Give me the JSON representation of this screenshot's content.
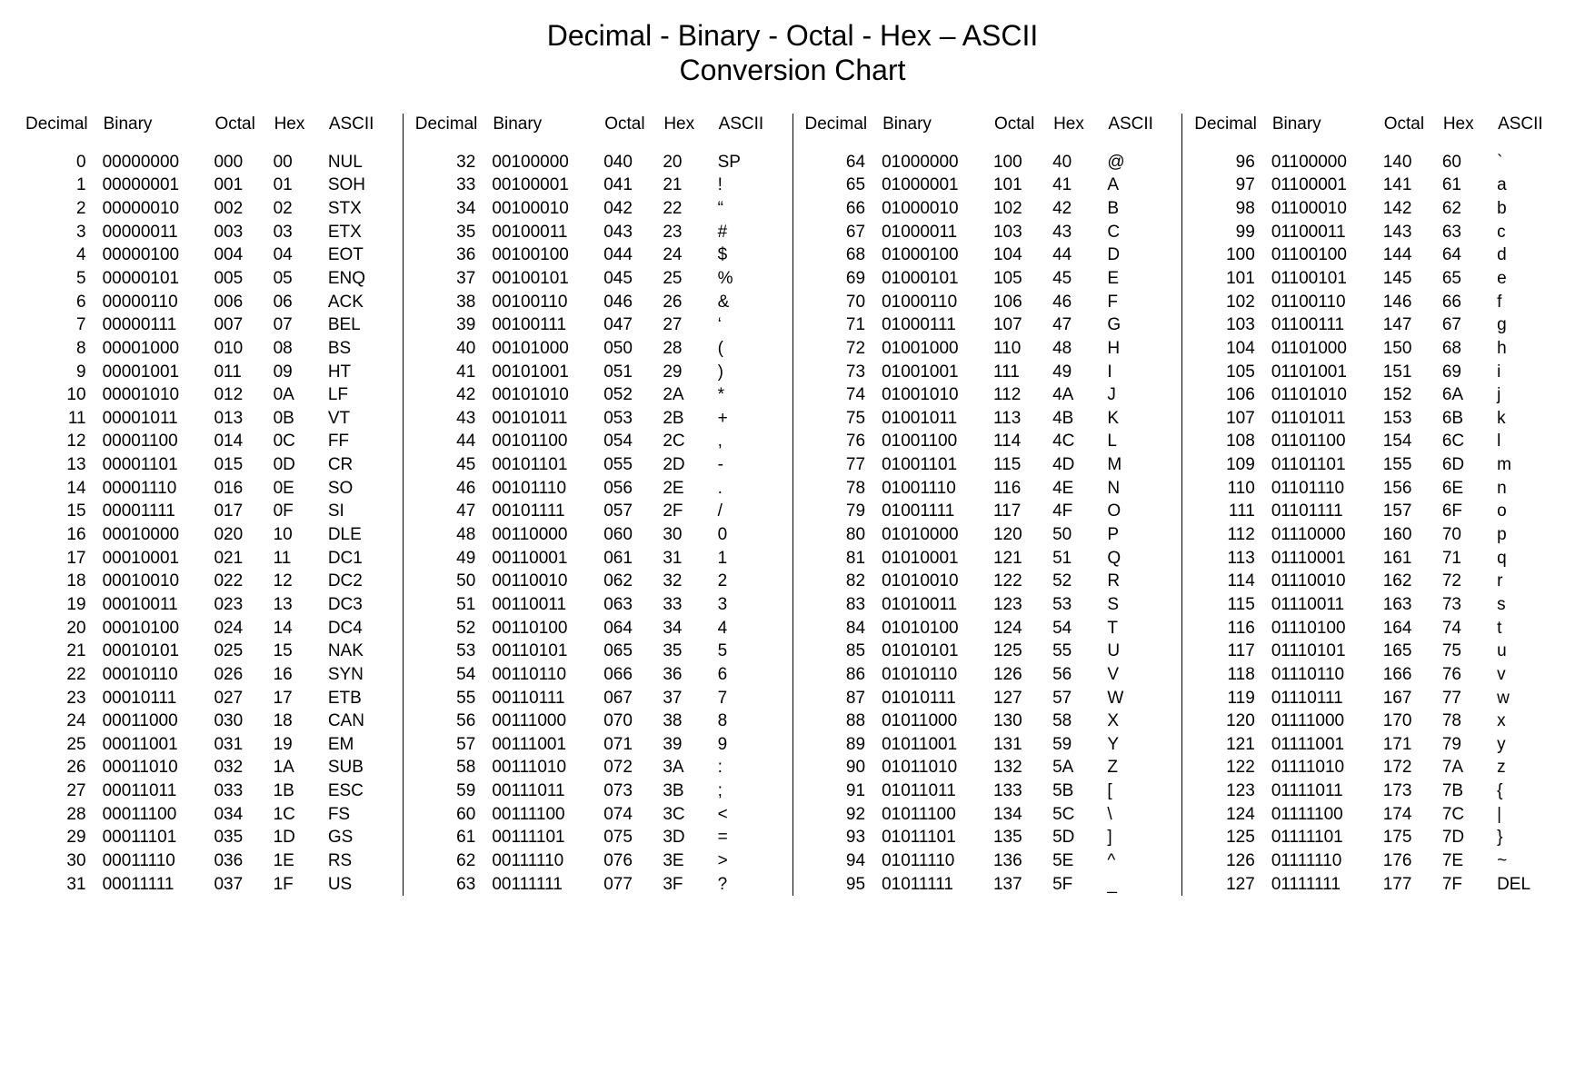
{
  "title_line1": "Decimal - Binary - Octal - Hex – ASCII",
  "title_line2": "Conversion Chart",
  "headers": [
    "Decimal",
    "Binary",
    "Octal",
    "Hex",
    "ASCII"
  ],
  "fontsize_title": 32,
  "fontsize_body": 19,
  "text_color": "#000000",
  "background_color": "#ffffff",
  "divider_color": "#000000",
  "groups": [
    {
      "start": 0,
      "rows": [
        [
          "0",
          "00000000",
          "000",
          "00",
          "NUL"
        ],
        [
          "1",
          "00000001",
          "001",
          "01",
          "SOH"
        ],
        [
          "2",
          "00000010",
          "002",
          "02",
          "STX"
        ],
        [
          "3",
          "00000011",
          "003",
          "03",
          "ETX"
        ],
        [
          "4",
          "00000100",
          "004",
          "04",
          "EOT"
        ],
        [
          "5",
          "00000101",
          "005",
          "05",
          "ENQ"
        ],
        [
          "6",
          "00000110",
          "006",
          "06",
          "ACK"
        ],
        [
          "7",
          "00000111",
          "007",
          "07",
          "BEL"
        ],
        [
          "8",
          "00001000",
          "010",
          "08",
          "BS"
        ],
        [
          "9",
          "00001001",
          "011",
          "09",
          "HT"
        ],
        [
          "10",
          "00001010",
          "012",
          "0A",
          "LF"
        ],
        [
          "11",
          "00001011",
          "013",
          "0B",
          "VT"
        ],
        [
          "12",
          "00001100",
          "014",
          "0C",
          "FF"
        ],
        [
          "13",
          "00001101",
          "015",
          "0D",
          "CR"
        ],
        [
          "14",
          "00001110",
          "016",
          "0E",
          "SO"
        ],
        [
          "15",
          "00001111",
          "017",
          "0F",
          "SI"
        ],
        [
          "16",
          "00010000",
          "020",
          "10",
          "DLE"
        ],
        [
          "17",
          "00010001",
          "021",
          "11",
          "DC1"
        ],
        [
          "18",
          "00010010",
          "022",
          "12",
          "DC2"
        ],
        [
          "19",
          "00010011",
          "023",
          "13",
          "DC3"
        ],
        [
          "20",
          "00010100",
          "024",
          "14",
          "DC4"
        ],
        [
          "21",
          "00010101",
          "025",
          "15",
          "NAK"
        ],
        [
          "22",
          "00010110",
          "026",
          "16",
          "SYN"
        ],
        [
          "23",
          "00010111",
          "027",
          "17",
          "ETB"
        ],
        [
          "24",
          "00011000",
          "030",
          "18",
          "CAN"
        ],
        [
          "25",
          "00011001",
          "031",
          "19",
          "EM"
        ],
        [
          "26",
          "00011010",
          "032",
          "1A",
          "SUB"
        ],
        [
          "27",
          "00011011",
          "033",
          "1B",
          "ESC"
        ],
        [
          "28",
          "00011100",
          "034",
          "1C",
          "FS"
        ],
        [
          "29",
          "00011101",
          "035",
          "1D",
          "GS"
        ],
        [
          "30",
          "00011110",
          "036",
          "1E",
          "RS"
        ],
        [
          "31",
          "00011111",
          "037",
          "1F",
          "US"
        ]
      ]
    },
    {
      "start": 32,
      "rows": [
        [
          "32",
          "00100000",
          "040",
          "20",
          "SP"
        ],
        [
          "33",
          "00100001",
          "041",
          "21",
          "!"
        ],
        [
          "34",
          "00100010",
          "042",
          "22",
          "“"
        ],
        [
          "35",
          "00100011",
          "043",
          "23",
          "#"
        ],
        [
          "36",
          "00100100",
          "044",
          "24",
          "$"
        ],
        [
          "37",
          "00100101",
          "045",
          "25",
          "%"
        ],
        [
          "38",
          "00100110",
          "046",
          "26",
          "&"
        ],
        [
          "39",
          "00100111",
          "047",
          "27",
          "‘"
        ],
        [
          "40",
          "00101000",
          "050",
          "28",
          "("
        ],
        [
          "41",
          "00101001",
          "051",
          "29",
          ")"
        ],
        [
          "42",
          "00101010",
          "052",
          "2A",
          "*"
        ],
        [
          "43",
          "00101011",
          "053",
          "2B",
          "+"
        ],
        [
          "44",
          "00101100",
          "054",
          "2C",
          ","
        ],
        [
          "45",
          "00101101",
          "055",
          "2D",
          "-"
        ],
        [
          "46",
          "00101110",
          "056",
          "2E",
          "."
        ],
        [
          "47",
          "00101111",
          "057",
          "2F",
          "/"
        ],
        [
          "48",
          "00110000",
          "060",
          "30",
          "0"
        ],
        [
          "49",
          "00110001",
          "061",
          "31",
          "1"
        ],
        [
          "50",
          "00110010",
          "062",
          "32",
          "2"
        ],
        [
          "51",
          "00110011",
          "063",
          "33",
          "3"
        ],
        [
          "52",
          "00110100",
          "064",
          "34",
          "4"
        ],
        [
          "53",
          "00110101",
          "065",
          "35",
          "5"
        ],
        [
          "54",
          "00110110",
          "066",
          "36",
          "6"
        ],
        [
          "55",
          "00110111",
          "067",
          "37",
          "7"
        ],
        [
          "56",
          "00111000",
          "070",
          "38",
          "8"
        ],
        [
          "57",
          "00111001",
          "071",
          "39",
          "9"
        ],
        [
          "58",
          "00111010",
          "072",
          "3A",
          ":"
        ],
        [
          "59",
          "00111011",
          "073",
          "3B",
          ";"
        ],
        [
          "60",
          "00111100",
          "074",
          "3C",
          "<"
        ],
        [
          "61",
          "00111101",
          "075",
          "3D",
          "="
        ],
        [
          "62",
          "00111110",
          "076",
          "3E",
          ">"
        ],
        [
          "63",
          "00111111",
          "077",
          "3F",
          "?"
        ]
      ]
    },
    {
      "start": 64,
      "rows": [
        [
          "64",
          "01000000",
          "100",
          "40",
          "@"
        ],
        [
          "65",
          "01000001",
          "101",
          "41",
          "A"
        ],
        [
          "66",
          "01000010",
          "102",
          "42",
          "B"
        ],
        [
          "67",
          "01000011",
          "103",
          "43",
          "C"
        ],
        [
          "68",
          "01000100",
          "104",
          "44",
          "D"
        ],
        [
          "69",
          "01000101",
          "105",
          "45",
          "E"
        ],
        [
          "70",
          "01000110",
          "106",
          "46",
          "F"
        ],
        [
          "71",
          "01000111",
          "107",
          "47",
          "G"
        ],
        [
          "72",
          "01001000",
          "110",
          "48",
          "H"
        ],
        [
          "73",
          "01001001",
          "111",
          "49",
          "I"
        ],
        [
          "74",
          "01001010",
          "112",
          "4A",
          "J"
        ],
        [
          "75",
          "01001011",
          "113",
          "4B",
          "K"
        ],
        [
          "76",
          "01001100",
          "114",
          "4C",
          "L"
        ],
        [
          "77",
          "01001101",
          "115",
          "4D",
          "M"
        ],
        [
          "78",
          "01001110",
          "116",
          "4E",
          "N"
        ],
        [
          "79",
          "01001111",
          "117",
          "4F",
          "O"
        ],
        [
          "80",
          "01010000",
          "120",
          "50",
          "P"
        ],
        [
          "81",
          "01010001",
          "121",
          "51",
          "Q"
        ],
        [
          "82",
          "01010010",
          "122",
          "52",
          "R"
        ],
        [
          "83",
          "01010011",
          "123",
          "53",
          "S"
        ],
        [
          "84",
          "01010100",
          "124",
          "54",
          "T"
        ],
        [
          "85",
          "01010101",
          "125",
          "55",
          "U"
        ],
        [
          "86",
          "01010110",
          "126",
          "56",
          "V"
        ],
        [
          "87",
          "01010111",
          "127",
          "57",
          "W"
        ],
        [
          "88",
          "01011000",
          "130",
          "58",
          "X"
        ],
        [
          "89",
          "01011001",
          "131",
          "59",
          "Y"
        ],
        [
          "90",
          "01011010",
          "132",
          "5A",
          "Z"
        ],
        [
          "91",
          "01011011",
          "133",
          "5B",
          "["
        ],
        [
          "92",
          "01011100",
          "134",
          "5C",
          "\\"
        ],
        [
          "93",
          "01011101",
          "135",
          "5D",
          "]"
        ],
        [
          "94",
          "01011110",
          "136",
          "5E",
          "^"
        ],
        [
          "95",
          "01011111",
          "137",
          "5F",
          "_"
        ]
      ]
    },
    {
      "start": 96,
      "rows": [
        [
          "96",
          "01100000",
          "140",
          "60",
          "`"
        ],
        [
          "97",
          "01100001",
          "141",
          "61",
          "a"
        ],
        [
          "98",
          "01100010",
          "142",
          "62",
          "b"
        ],
        [
          "99",
          "01100011",
          "143",
          "63",
          "c"
        ],
        [
          "100",
          "01100100",
          "144",
          "64",
          "d"
        ],
        [
          "101",
          "01100101",
          "145",
          "65",
          "e"
        ],
        [
          "102",
          "01100110",
          "146",
          "66",
          "f"
        ],
        [
          "103",
          "01100111",
          "147",
          "67",
          "g"
        ],
        [
          "104",
          "01101000",
          "150",
          "68",
          "h"
        ],
        [
          "105",
          "01101001",
          "151",
          "69",
          "i"
        ],
        [
          "106",
          "01101010",
          "152",
          "6A",
          "j"
        ],
        [
          "107",
          "01101011",
          "153",
          "6B",
          "k"
        ],
        [
          "108",
          "01101100",
          "154",
          "6C",
          "l"
        ],
        [
          "109",
          "01101101",
          "155",
          "6D",
          "m"
        ],
        [
          "110",
          "01101110",
          "156",
          "6E",
          "n"
        ],
        [
          "111",
          "01101111",
          "157",
          "6F",
          "o"
        ],
        [
          "112",
          "01110000",
          "160",
          "70",
          "p"
        ],
        [
          "113",
          "01110001",
          "161",
          "71",
          "q"
        ],
        [
          "114",
          "01110010",
          "162",
          "72",
          "r"
        ],
        [
          "115",
          "01110011",
          "163",
          "73",
          "s"
        ],
        [
          "116",
          "01110100",
          "164",
          "74",
          "t"
        ],
        [
          "117",
          "01110101",
          "165",
          "75",
          "u"
        ],
        [
          "118",
          "01110110",
          "166",
          "76",
          "v"
        ],
        [
          "119",
          "01110111",
          "167",
          "77",
          "w"
        ],
        [
          "120",
          "01111000",
          "170",
          "78",
          "x"
        ],
        [
          "121",
          "01111001",
          "171",
          "79",
          "y"
        ],
        [
          "122",
          "01111010",
          "172",
          "7A",
          "z"
        ],
        [
          "123",
          "01111011",
          "173",
          "7B",
          "{"
        ],
        [
          "124",
          "01111100",
          "174",
          "7C",
          "|"
        ],
        [
          "125",
          "01111101",
          "175",
          "7D",
          "}"
        ],
        [
          "126",
          "01111110",
          "176",
          "7E",
          "~"
        ],
        [
          "127",
          "01111111",
          "177",
          "7F",
          "DEL"
        ]
      ]
    }
  ]
}
